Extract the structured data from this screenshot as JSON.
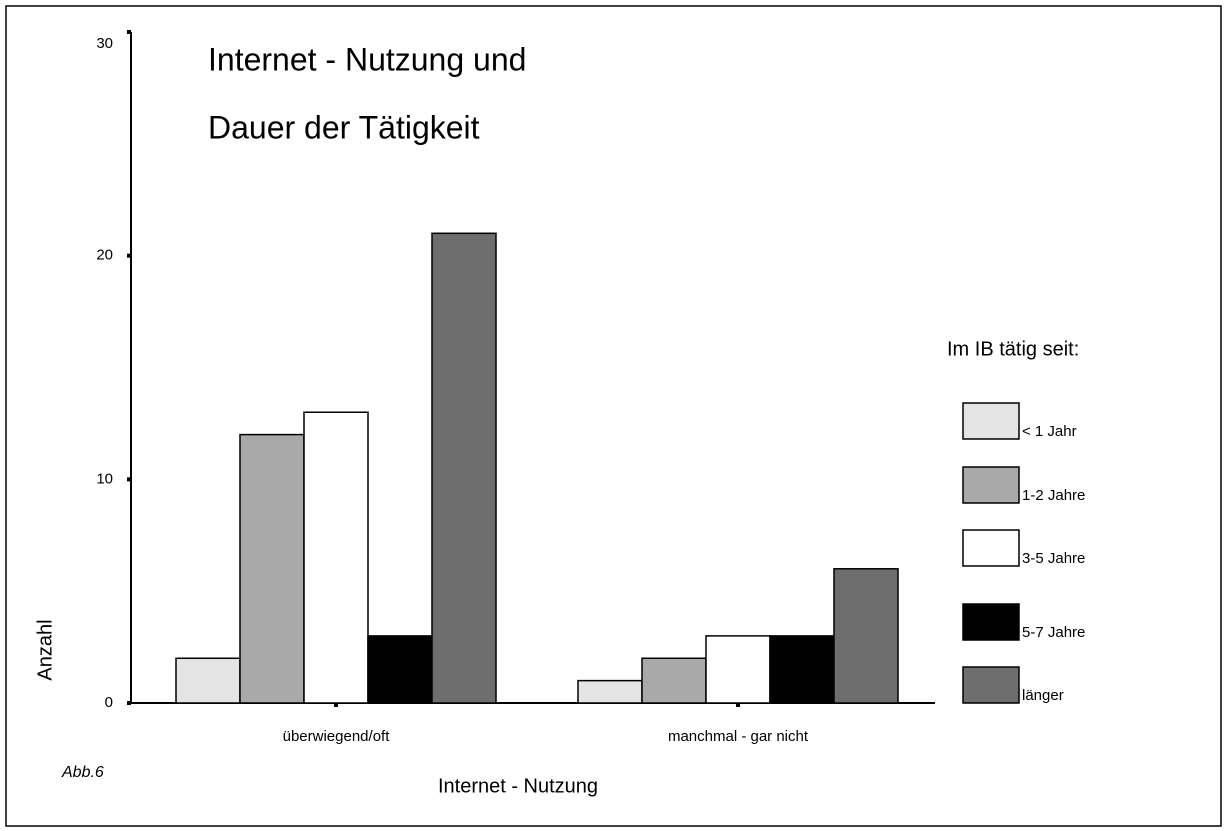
{
  "chart_data": {
    "type": "bar",
    "title": [
      "Internet - Nutzung und",
      "Dauer der Tätigkeit"
    ],
    "x_label": "Internet - Nutzung",
    "y_label": "Anzahl",
    "annotation": "Abb.6",
    "legend_title": "Im IB tätig seit:",
    "categories": [
      "überwiegend/oft",
      "manchmal - gar nicht"
    ],
    "series": [
      {
        "name": "< 1 Jahr",
        "color": "#e4e4e4",
        "values": [
          2,
          1
        ]
      },
      {
        "name": "1-2 Jahre",
        "color": "#a9a9a9",
        "values": [
          12,
          2
        ]
      },
      {
        "name": "3-5 Jahre",
        "color": "#ffffff",
        "values": [
          13,
          3
        ]
      },
      {
        "name": "5-7 Jahre",
        "color": "#000000",
        "values": [
          3,
          3
        ]
      },
      {
        "name": "länger",
        "color": "#6e6e6e",
        "values": [
          21,
          6
        ]
      }
    ],
    "ylim": [
      0,
      30
    ],
    "yticks": [
      0,
      10,
      20,
      30
    ],
    "grid": false,
    "legend": "right"
  }
}
